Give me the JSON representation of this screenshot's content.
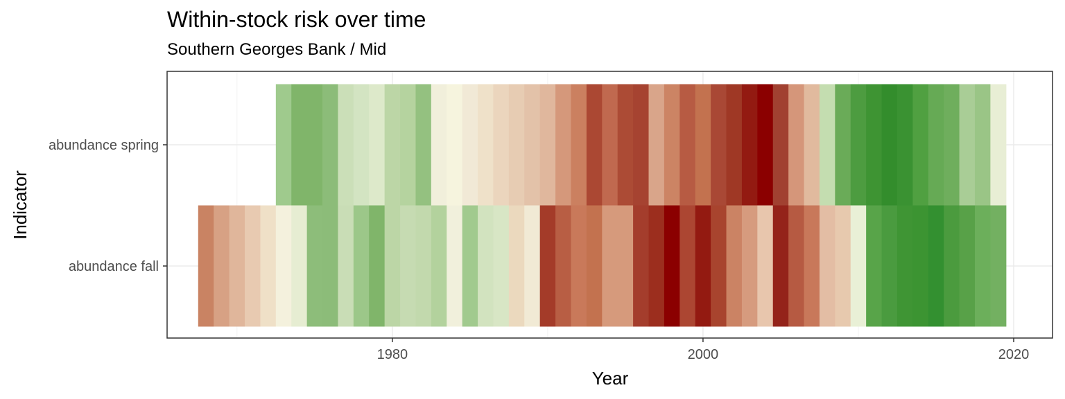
{
  "chart_data": {
    "type": "heatmap",
    "title": "Within-stock risk over time",
    "subtitle": "Southern Georges Bank / Mid",
    "xlabel": "Year",
    "ylabel": "Indicator",
    "x_ticks": [
      1980,
      2000,
      2020
    ],
    "xlim": [
      1965.5,
      2022.5
    ],
    "grid": true,
    "categories": [
      "abundance fall",
      "abundance spring"
    ],
    "series": [
      {
        "name": "abundance spring",
        "start_year": 1973,
        "colors": [
          "#9fca8d",
          "#80b56a",
          "#80b56a",
          "#8cbc79",
          "#cbdfb8",
          "#d3e4c2",
          "#dde9ca",
          "#bcd6a6",
          "#b5d39f",
          "#94c180",
          "#f1efdb",
          "#f6f4de",
          "#f1e9d6",
          "#efe1c9",
          "#ebd5bd",
          "#e7ccb3",
          "#e3c2a9",
          "#e0b79d",
          "#d5987b",
          "#cb8060",
          "#ab4833",
          "#c0694f",
          "#ac4b35",
          "#a64331",
          "#d9a58a",
          "#cc8464",
          "#b75b43",
          "#c3724f",
          "#a94835",
          "#9f3825",
          "#931a11",
          "#8b0000",
          "#a14131",
          "#d5967a",
          "#e1ba9e",
          "#c4ddb0",
          "#6aab58",
          "#4d9c40",
          "#3e9433",
          "#338d2c",
          "#3a9232",
          "#50a041",
          "#66aa55",
          "#6fae5d",
          "#a9cd96",
          "#9ac586",
          "#e8eed5"
        ]
      },
      {
        "name": "abundance fall",
        "start_year": 1968,
        "colors": [
          "#c98363",
          "#d7a184",
          "#e0b69b",
          "#e8cab1",
          "#efe0c7",
          "#f4f1dd",
          "#e6edd2",
          "#8dbd7a",
          "#8cbc79",
          "#c9ddb6",
          "#9cc789",
          "#80b56a",
          "#bcd6a6",
          "#c6dbb2",
          "#c2d9ad",
          "#b3d29d",
          "#f1f0dc",
          "#a1ca8e",
          "#d2e3bf",
          "#d8e6c5",
          "#ebd9be",
          "#f1ead5",
          "#a43b29",
          "#b85e44",
          "#c9795a",
          "#c3724f",
          "#d69a7c",
          "#d69a7c",
          "#a43d2c",
          "#9c2e1e",
          "#8b0000",
          "#ac4632",
          "#931a11",
          "#a8442e",
          "#cb8364",
          "#d69b7e",
          "#e8c6ad",
          "#94231a",
          "#b65a42",
          "#c8785a",
          "#e3bda4",
          "#e7c9ae",
          "#e9f0d6",
          "#58a449",
          "#4a9b3f",
          "#3f9534",
          "#3c9432",
          "#339030",
          "#4b9b3e",
          "#58a148",
          "#6caf5b",
          "#73b061"
        ]
      }
    ]
  }
}
